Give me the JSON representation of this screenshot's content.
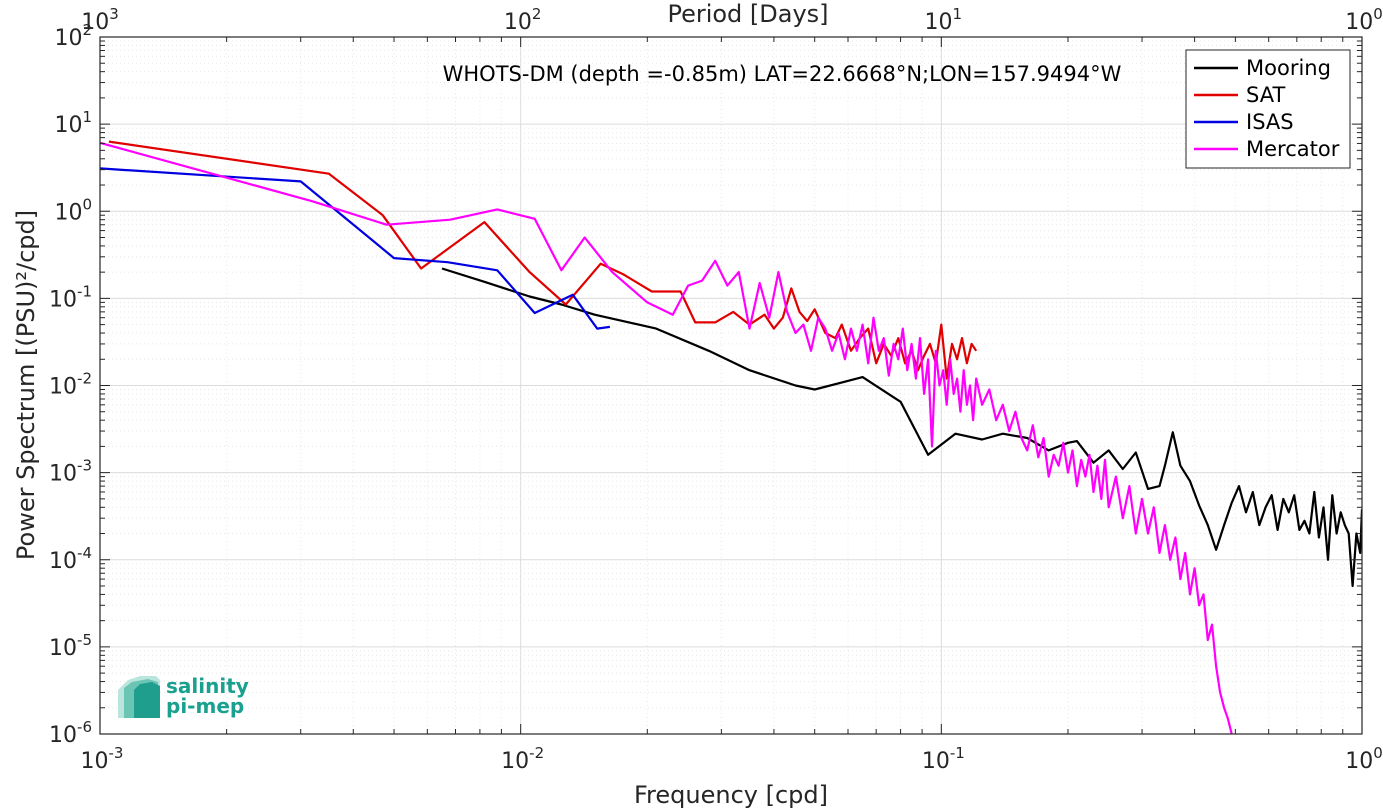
{
  "chart_data": {
    "type": "line",
    "title": "WHOTS-DM (depth =-0.85m) LAT=22.6668°N;LON=157.9494°W",
    "xlabel": "Frequency [cpd]",
    "ylabel": "Power Spectrum [(PSU)²/cpd]",
    "x2label": "Period [Days]",
    "xscale": "log",
    "yscale": "log",
    "xlim": [
      0.001,
      1
    ],
    "ylim": [
      1e-06,
      100
    ],
    "grid": true,
    "minor_grid": true,
    "legend_position": "top-right",
    "x_ticks": [
      {
        "base": "10",
        "exp": "-3"
      },
      {
        "base": "10",
        "exp": "-2"
      },
      {
        "base": "10",
        "exp": "-1"
      },
      {
        "base": "10",
        "exp": "0"
      }
    ],
    "x2_ticks": [
      {
        "base": "10",
        "exp": "3"
      },
      {
        "base": "10",
        "exp": "2"
      },
      {
        "base": "10",
        "exp": "1"
      },
      {
        "base": "10",
        "exp": "0"
      }
    ],
    "y_ticks": [
      {
        "base": "10",
        "exp": "2"
      },
      {
        "base": "10",
        "exp": "1"
      },
      {
        "base": "10",
        "exp": "0"
      },
      {
        "base": "10",
        "exp": "-1"
      },
      {
        "base": "10",
        "exp": "-2"
      },
      {
        "base": "10",
        "exp": "-3"
      },
      {
        "base": "10",
        "exp": "-4"
      },
      {
        "base": "10",
        "exp": "-5"
      },
      {
        "base": "10",
        "exp": "-6"
      }
    ],
    "series": [
      {
        "name": "Mooring",
        "color": "#000000",
        "points": [
          [
            0.0065,
            0.22
          ],
          [
            0.0082,
            0.155
          ],
          [
            0.0105,
            0.105
          ],
          [
            0.0125,
            0.085
          ],
          [
            0.015,
            0.065
          ],
          [
            0.021,
            0.045
          ],
          [
            0.028,
            0.025
          ],
          [
            0.035,
            0.015
          ],
          [
            0.045,
            0.01
          ],
          [
            0.05,
            0.009
          ],
          [
            0.065,
            0.0125
          ],
          [
            0.08,
            0.0065
          ],
          [
            0.093,
            0.0016
          ],
          [
            0.108,
            0.0028
          ],
          [
            0.125,
            0.0024
          ],
          [
            0.14,
            0.0028
          ],
          [
            0.16,
            0.0025
          ],
          [
            0.18,
            0.0018
          ],
          [
            0.2,
            0.0022
          ],
          [
            0.21,
            0.0023
          ],
          [
            0.23,
            0.0013
          ],
          [
            0.25,
            0.0018
          ],
          [
            0.27,
            0.0011
          ],
          [
            0.29,
            0.0017
          ],
          [
            0.31,
            0.00065
          ],
          [
            0.33,
            0.0007
          ],
          [
            0.34,
            0.0012
          ],
          [
            0.355,
            0.0029
          ],
          [
            0.37,
            0.0012
          ],
          [
            0.39,
            0.0008
          ],
          [
            0.41,
            0.00042
          ],
          [
            0.43,
            0.00025
          ],
          [
            0.45,
            0.00013
          ],
          [
            0.47,
            0.00025
          ],
          [
            0.49,
            0.00045
          ],
          [
            0.51,
            0.0007
          ],
          [
            0.53,
            0.00035
          ],
          [
            0.55,
            0.0006
          ],
          [
            0.57,
            0.00025
          ],
          [
            0.59,
            0.0004
          ],
          [
            0.61,
            0.00055
          ],
          [
            0.63,
            0.00022
          ],
          [
            0.65,
            0.0005
          ],
          [
            0.67,
            0.00035
          ],
          [
            0.69,
            0.00055
          ],
          [
            0.71,
            0.00022
          ],
          [
            0.73,
            0.00028
          ],
          [
            0.75,
            0.0002
          ],
          [
            0.77,
            0.0006
          ],
          [
            0.79,
            0.00018
          ],
          [
            0.81,
            0.0004
          ],
          [
            0.83,
            0.0001
          ],
          [
            0.85,
            0.00055
          ],
          [
            0.87,
            0.0002
          ],
          [
            0.89,
            0.00035
          ],
          [
            0.91,
            0.00025
          ],
          [
            0.93,
            0.0002
          ],
          [
            0.95,
            5e-05
          ],
          [
            0.97,
            0.0002
          ],
          [
            0.99,
            0.00012
          ],
          [
            1.0,
            0.00038
          ]
        ]
      },
      {
        "name": "SAT",
        "color": "#e00000",
        "points": [
          [
            0.00105,
            6.3
          ],
          [
            0.0035,
            2.7
          ],
          [
            0.0047,
            0.9
          ],
          [
            0.0058,
            0.22
          ],
          [
            0.0082,
            0.75
          ],
          [
            0.0105,
            0.2
          ],
          [
            0.0128,
            0.085
          ],
          [
            0.0155,
            0.25
          ],
          [
            0.0175,
            0.19
          ],
          [
            0.0205,
            0.12
          ],
          [
            0.024,
            0.12
          ],
          [
            0.026,
            0.053
          ],
          [
            0.029,
            0.053
          ],
          [
            0.032,
            0.07
          ],
          [
            0.035,
            0.05
          ],
          [
            0.038,
            0.065
          ],
          [
            0.04,
            0.045
          ],
          [
            0.042,
            0.06
          ],
          [
            0.044,
            0.13
          ],
          [
            0.046,
            0.07
          ],
          [
            0.048,
            0.055
          ],
          [
            0.05,
            0.075
          ],
          [
            0.053,
            0.04
          ],
          [
            0.056,
            0.035
          ],
          [
            0.058,
            0.05
          ],
          [
            0.061,
            0.025
          ],
          [
            0.064,
            0.035
          ],
          [
            0.067,
            0.045
          ],
          [
            0.07,
            0.018
          ],
          [
            0.073,
            0.03
          ],
          [
            0.076,
            0.022
          ],
          [
            0.079,
            0.035
          ],
          [
            0.082,
            0.018
          ],
          [
            0.085,
            0.025
          ],
          [
            0.088,
            0.015
          ],
          [
            0.091,
            0.022
          ],
          [
            0.094,
            0.03
          ],
          [
            0.097,
            0.018
          ],
          [
            0.1,
            0.05
          ],
          [
            0.103,
            0.012
          ],
          [
            0.106,
            0.03
          ],
          [
            0.109,
            0.02
          ],
          [
            0.112,
            0.035
          ],
          [
            0.115,
            0.018
          ],
          [
            0.118,
            0.03
          ],
          [
            0.121,
            0.025
          ]
        ]
      },
      {
        "name": "ISAS",
        "color": "#0000e0",
        "points": [
          [
            0.001,
            3.1
          ],
          [
            0.003,
            2.2
          ],
          [
            0.005,
            0.29
          ],
          [
            0.0067,
            0.26
          ],
          [
            0.0088,
            0.21
          ],
          [
            0.0108,
            0.068
          ],
          [
            0.0133,
            0.11
          ],
          [
            0.0152,
            0.045
          ],
          [
            0.0163,
            0.047
          ]
        ]
      },
      {
        "name": "Mercator",
        "color": "#ff00ff",
        "points": [
          [
            0.001,
            6.1
          ],
          [
            0.0032,
            1.3
          ],
          [
            0.0048,
            0.7
          ],
          [
            0.0068,
            0.8
          ],
          [
            0.0088,
            1.05
          ],
          [
            0.0108,
            0.82
          ],
          [
            0.0125,
            0.21
          ],
          [
            0.0142,
            0.5
          ],
          [
            0.0165,
            0.2
          ],
          [
            0.02,
            0.09
          ],
          [
            0.023,
            0.065
          ],
          [
            0.025,
            0.14
          ],
          [
            0.027,
            0.16
          ],
          [
            0.029,
            0.27
          ],
          [
            0.031,
            0.14
          ],
          [
            0.033,
            0.2
          ],
          [
            0.035,
            0.045
          ],
          [
            0.037,
            0.15
          ],
          [
            0.039,
            0.06
          ],
          [
            0.041,
            0.2
          ],
          [
            0.043,
            0.07
          ],
          [
            0.045,
            0.04
          ],
          [
            0.047,
            0.05
          ],
          [
            0.049,
            0.025
          ],
          [
            0.051,
            0.06
          ],
          [
            0.053,
            0.045
          ],
          [
            0.055,
            0.025
          ],
          [
            0.057,
            0.04
          ],
          [
            0.059,
            0.02
          ],
          [
            0.061,
            0.045
          ],
          [
            0.063,
            0.025
          ],
          [
            0.065,
            0.05
          ],
          [
            0.067,
            0.018
          ],
          [
            0.069,
            0.06
          ],
          [
            0.071,
            0.025
          ],
          [
            0.073,
            0.035
          ],
          [
            0.075,
            0.013
          ],
          [
            0.077,
            0.03
          ],
          [
            0.079,
            0.02
          ],
          [
            0.081,
            0.045
          ],
          [
            0.083,
            0.015
          ],
          [
            0.085,
            0.03
          ],
          [
            0.087,
            0.012
          ],
          [
            0.089,
            0.035
          ],
          [
            0.091,
            0.008
          ],
          [
            0.093,
            0.02
          ],
          [
            0.095,
            0.002
          ],
          [
            0.097,
            0.025
          ],
          [
            0.099,
            0.01
          ],
          [
            0.101,
            0.015
          ],
          [
            0.103,
            0.006
          ],
          [
            0.105,
            0.02
          ],
          [
            0.107,
            0.008
          ],
          [
            0.109,
            0.012
          ],
          [
            0.111,
            0.005
          ],
          [
            0.113,
            0.015
          ],
          [
            0.115,
            0.006
          ],
          [
            0.117,
            0.01
          ],
          [
            0.119,
            0.004
          ],
          [
            0.121,
            0.012
          ],
          [
            0.125,
            0.006
          ],
          [
            0.13,
            0.009
          ],
          [
            0.135,
            0.004
          ],
          [
            0.14,
            0.006
          ],
          [
            0.145,
            0.003
          ],
          [
            0.15,
            0.005
          ],
          [
            0.155,
            0.0025
          ],
          [
            0.16,
            0.0018
          ],
          [
            0.165,
            0.0035
          ],
          [
            0.17,
            0.0015
          ],
          [
            0.175,
            0.0025
          ],
          [
            0.18,
            0.0009
          ],
          [
            0.185,
            0.0016
          ],
          [
            0.19,
            0.0012
          ],
          [
            0.195,
            0.0022
          ],
          [
            0.2,
            0.001
          ],
          [
            0.205,
            0.0018
          ],
          [
            0.21,
            0.0007
          ],
          [
            0.215,
            0.0014
          ],
          [
            0.22,
            0.0009
          ],
          [
            0.225,
            0.0016
          ],
          [
            0.23,
            0.0006
          ],
          [
            0.235,
            0.0012
          ],
          [
            0.24,
            0.0005
          ],
          [
            0.245,
            0.0014
          ],
          [
            0.25,
            0.0004
          ],
          [
            0.26,
            0.0009
          ],
          [
            0.27,
            0.0003
          ],
          [
            0.28,
            0.0007
          ],
          [
            0.29,
            0.0002
          ],
          [
            0.3,
            0.0005
          ],
          [
            0.31,
            0.0002
          ],
          [
            0.32,
            0.0004
          ],
          [
            0.33,
            0.00012
          ],
          [
            0.34,
            0.00025
          ],
          [
            0.35,
            0.0001
          ],
          [
            0.36,
            0.00018
          ],
          [
            0.37,
            6e-05
          ],
          [
            0.38,
            0.00012
          ],
          [
            0.39,
            4e-05
          ],
          [
            0.4,
            8e-05
          ],
          [
            0.41,
            3e-05
          ],
          [
            0.42,
            4e-05
          ],
          [
            0.43,
            1.2e-05
          ],
          [
            0.44,
            1.8e-05
          ],
          [
            0.45,
            6e-06
          ],
          [
            0.46,
            3e-06
          ],
          [
            0.47,
            2e-06
          ],
          [
            0.48,
            1.5e-06
          ],
          [
            0.49,
            1e-06
          ]
        ]
      }
    ]
  },
  "logo": {
    "line1": "salinity",
    "line2": "pi-mep"
  }
}
